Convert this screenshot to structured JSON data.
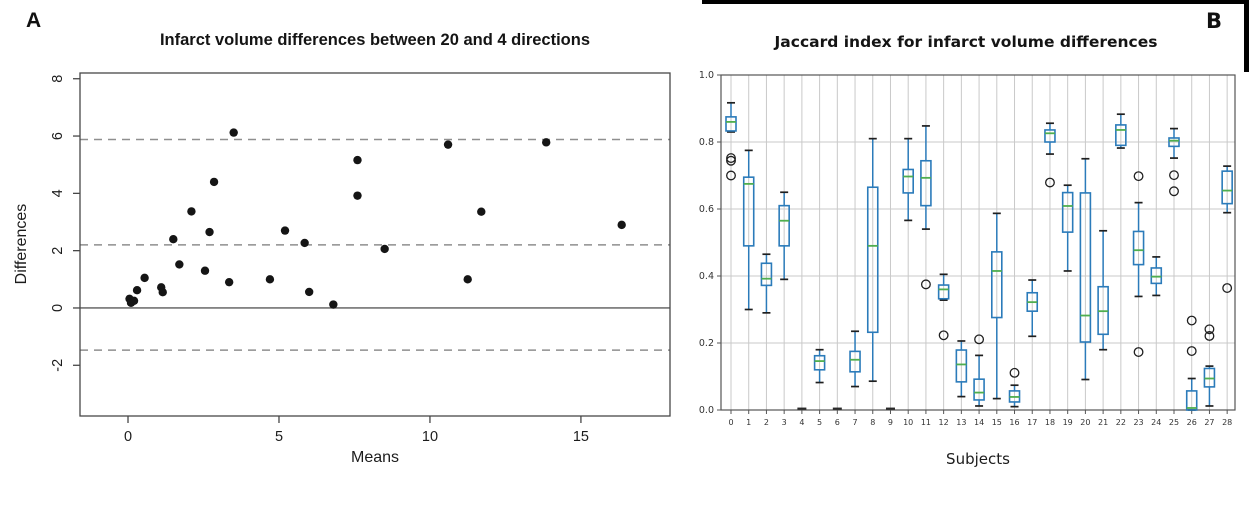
{
  "figure": {
    "panel_a_label": "A",
    "panel_b_label": "B"
  },
  "colors": {
    "point": "#151515",
    "frame_a": "#474747",
    "zero_line": "#5a5a5a",
    "dashed_line": "#8f8f8f",
    "frame_b": "#555555",
    "grid": "#c9c9c9",
    "box_edge": "#2b7bba",
    "whisker": "#2b7bba",
    "median": "#4fae4f",
    "cap": "#1f1f1f",
    "outlier": "#1f1f1f",
    "flat_mark": "#2a2a2a"
  },
  "chart_data": [
    {
      "type": "scatter",
      "title": "Infarct volume differences between 20 and 4 directions",
      "xlabel": "Means",
      "ylabel": "Differences",
      "xlim": [
        -1.59,
        17.95
      ],
      "ylim": [
        -3.77,
        8.2
      ],
      "xticks": [
        0,
        5,
        10,
        15
      ],
      "yticks": [
        -2,
        0,
        2,
        4,
        6,
        8
      ],
      "grid": false,
      "ref_lines": {
        "zero": 0,
        "mean": 2.2,
        "upper_loa": 5.88,
        "lower_loa": -1.47
      },
      "points": [
        [
          0.05,
          0.32
        ],
        [
          0.1,
          0.18
        ],
        [
          0.2,
          0.25
        ],
        [
          0.3,
          0.62
        ],
        [
          0.55,
          1.05
        ],
        [
          1.1,
          0.72
        ],
        [
          1.15,
          0.55
        ],
        [
          1.5,
          2.4
        ],
        [
          1.7,
          1.52
        ],
        [
          2.1,
          3.37
        ],
        [
          2.55,
          1.3
        ],
        [
          2.7,
          2.65
        ],
        [
          2.85,
          4.4
        ],
        [
          3.35,
          0.9
        ],
        [
          3.5,
          6.12
        ],
        [
          4.7,
          1.0
        ],
        [
          5.2,
          2.7
        ],
        [
          5.85,
          2.27
        ],
        [
          6.0,
          0.56
        ],
        [
          6.8,
          0.12
        ],
        [
          7.6,
          5.16
        ],
        [
          7.6,
          3.92
        ],
        [
          8.5,
          2.06
        ],
        [
          10.6,
          5.7
        ],
        [
          11.25,
          1.0
        ],
        [
          11.7,
          3.36
        ],
        [
          13.85,
          5.78
        ],
        [
          16.35,
          2.9
        ]
      ]
    },
    {
      "type": "boxplot",
      "title": "Jaccard index for infarct volume differences",
      "xlabel": "Subjects",
      "ylim": [
        0,
        1
      ],
      "yticks": [
        0.0,
        0.2,
        0.4,
        0.6,
        0.8,
        1.0
      ],
      "grid": true,
      "legend": "none",
      "boxes": [
        {
          "s": 0,
          "lo": 0.83,
          "q1": 0.833,
          "med": 0.86,
          "q3": 0.875,
          "hi": 0.917,
          "out": [
            0.752,
            0.744,
            0.7
          ]
        },
        {
          "s": 1,
          "lo": 0.3,
          "q1": 0.49,
          "med": 0.675,
          "q3": 0.695,
          "hi": 0.775,
          "out": []
        },
        {
          "s": 2,
          "lo": 0.29,
          "q1": 0.372,
          "med": 0.392,
          "q3": 0.438,
          "hi": 0.465,
          "out": []
        },
        {
          "s": 3,
          "lo": 0.39,
          "q1": 0.49,
          "med": 0.565,
          "q3": 0.61,
          "hi": 0.65,
          "out": []
        },
        {
          "s": 4,
          "lo": 0.004,
          "q1": 0.004,
          "med": 0.004,
          "q3": 0.004,
          "hi": 0.004,
          "out": []
        },
        {
          "s": 5,
          "lo": 0.082,
          "q1": 0.12,
          "med": 0.146,
          "q3": 0.162,
          "hi": 0.18,
          "out": []
        },
        {
          "s": 6,
          "lo": 0.004,
          "q1": 0.004,
          "med": 0.004,
          "q3": 0.004,
          "hi": 0.004,
          "out": []
        },
        {
          "s": 7,
          "lo": 0.07,
          "q1": 0.114,
          "med": 0.15,
          "q3": 0.175,
          "hi": 0.235,
          "out": []
        },
        {
          "s": 8,
          "lo": 0.086,
          "q1": 0.232,
          "med": 0.49,
          "q3": 0.665,
          "hi": 0.81,
          "out": []
        },
        {
          "s": 9,
          "lo": 0.004,
          "q1": 0.004,
          "med": 0.004,
          "q3": 0.004,
          "hi": 0.004,
          "out": []
        },
        {
          "s": 10,
          "lo": 0.566,
          "q1": 0.648,
          "med": 0.697,
          "q3": 0.718,
          "hi": 0.81,
          "out": []
        },
        {
          "s": 11,
          "lo": 0.54,
          "q1": 0.61,
          "med": 0.693,
          "q3": 0.744,
          "hi": 0.848,
          "out": [
            0.375
          ]
        },
        {
          "s": 12,
          "lo": 0.328,
          "q1": 0.332,
          "med": 0.36,
          "q3": 0.373,
          "hi": 0.405,
          "out": [
            0.223
          ]
        },
        {
          "s": 13,
          "lo": 0.04,
          "q1": 0.084,
          "med": 0.136,
          "q3": 0.179,
          "hi": 0.206,
          "out": []
        },
        {
          "s": 14,
          "lo": 0.012,
          "q1": 0.03,
          "med": 0.052,
          "q3": 0.092,
          "hi": 0.163,
          "out": [
            0.211
          ]
        },
        {
          "s": 15,
          "lo": 0.034,
          "q1": 0.276,
          "med": 0.415,
          "q3": 0.472,
          "hi": 0.587,
          "out": []
        },
        {
          "s": 16,
          "lo": 0.01,
          "q1": 0.024,
          "med": 0.039,
          "q3": 0.057,
          "hi": 0.074,
          "out": [
            0.111
          ]
        },
        {
          "s": 17,
          "lo": 0.22,
          "q1": 0.295,
          "med": 0.322,
          "q3": 0.35,
          "hi": 0.388,
          "out": []
        },
        {
          "s": 18,
          "lo": 0.764,
          "q1": 0.8,
          "med": 0.826,
          "q3": 0.836,
          "hi": 0.856,
          "out": [
            0.679
          ]
        },
        {
          "s": 19,
          "lo": 0.415,
          "q1": 0.531,
          "med": 0.609,
          "q3": 0.649,
          "hi": 0.671,
          "out": []
        },
        {
          "s": 20,
          "lo": 0.091,
          "q1": 0.203,
          "med": 0.282,
          "q3": 0.648,
          "hi": 0.75,
          "out": []
        },
        {
          "s": 21,
          "lo": 0.18,
          "q1": 0.226,
          "med": 0.295,
          "q3": 0.368,
          "hi": 0.535,
          "out": []
        },
        {
          "s": 22,
          "lo": 0.782,
          "q1": 0.79,
          "med": 0.836,
          "q3": 0.851,
          "hi": 0.883,
          "out": []
        },
        {
          "s": 23,
          "lo": 0.339,
          "q1": 0.434,
          "med": 0.477,
          "q3": 0.533,
          "hi": 0.619,
          "out": [
            0.698,
            0.173
          ]
        },
        {
          "s": 24,
          "lo": 0.342,
          "q1": 0.378,
          "med": 0.398,
          "q3": 0.424,
          "hi": 0.457,
          "out": []
        },
        {
          "s": 25,
          "lo": 0.752,
          "q1": 0.787,
          "med": 0.804,
          "q3": 0.812,
          "hi": 0.84,
          "out": [
            0.701,
            0.653
          ]
        },
        {
          "s": 26,
          "lo": 0.0,
          "q1": 0.0,
          "med": 0.006,
          "q3": 0.057,
          "hi": 0.094,
          "out": [
            0.267,
            0.176
          ]
        },
        {
          "s": 27,
          "lo": 0.012,
          "q1": 0.069,
          "med": 0.094,
          "q3": 0.124,
          "hi": 0.131,
          "out": [
            0.241,
            0.221
          ]
        },
        {
          "s": 28,
          "lo": 0.589,
          "q1": 0.616,
          "med": 0.655,
          "q3": 0.713,
          "hi": 0.728,
          "out": [
            0.364
          ]
        }
      ]
    }
  ]
}
